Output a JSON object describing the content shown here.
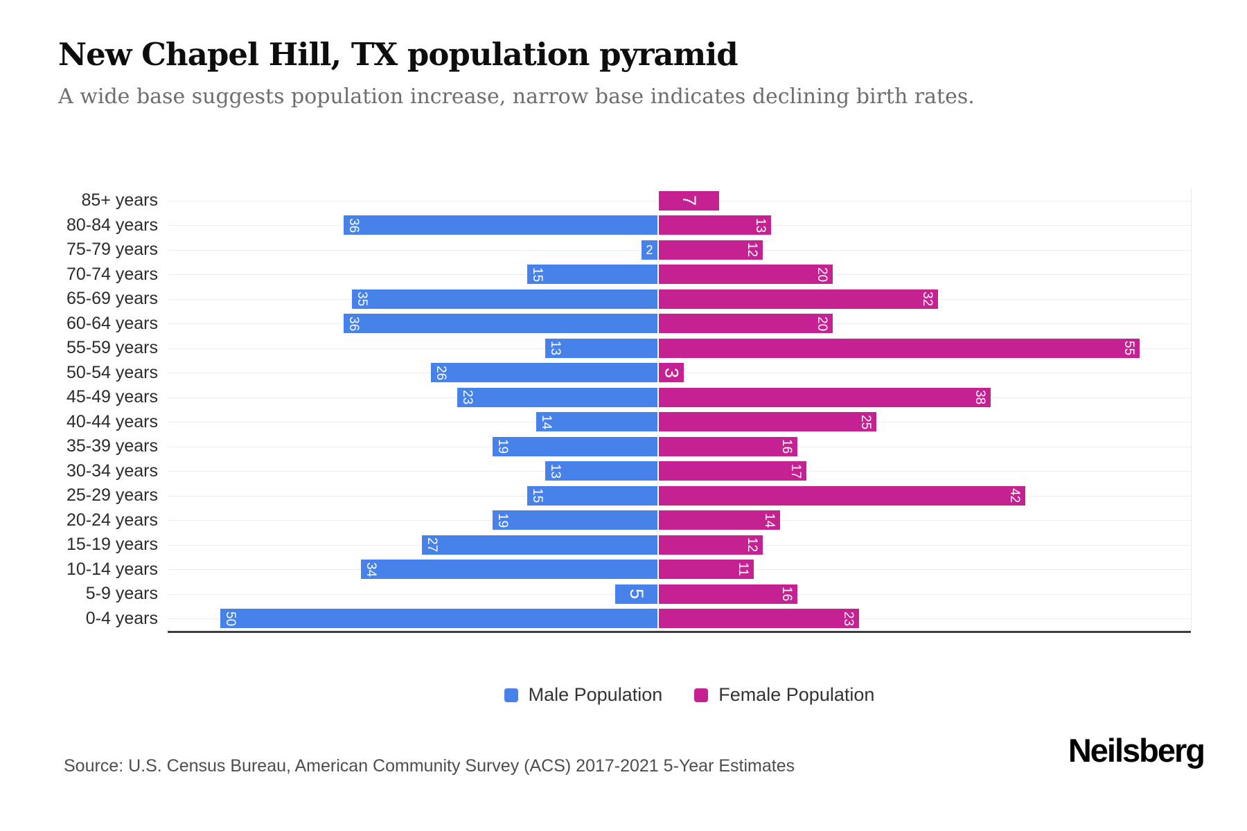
{
  "header": {
    "title": "New Chapel Hill, TX population pyramid",
    "subtitle": "A wide base suggests population increase, narrow base indicates declining birth rates."
  },
  "chart_data": {
    "type": "bar",
    "variant": "population-pyramid",
    "title": "New Chapel Hill, TX population pyramid",
    "categories": [
      "85+ years",
      "80-84 years",
      "75-79 years",
      "70-74 years",
      "65-69 years",
      "60-64 years",
      "55-59 years",
      "50-54 years",
      "45-49 years",
      "40-44 years",
      "35-39 years",
      "30-34 years",
      "25-29 years",
      "20-24 years",
      "15-19 years",
      "10-14 years",
      "5-9 years",
      "0-4 years"
    ],
    "series": [
      {
        "name": "Male Population",
        "color": "#4782EB",
        "values": [
          0,
          36,
          2,
          15,
          35,
          36,
          13,
          26,
          23,
          14,
          19,
          13,
          15,
          19,
          27,
          34,
          5,
          50
        ]
      },
      {
        "name": "Female Population",
        "color": "#C52192",
        "values": [
          7,
          13,
          12,
          20,
          32,
          20,
          55,
          3,
          38,
          25,
          16,
          17,
          42,
          14,
          12,
          11,
          16,
          23
        ]
      }
    ],
    "value_labels": "on bars, white, rotated 90deg",
    "axis": {
      "male_half_max": 56,
      "female_half_max": 61,
      "gridlines": "horizontal light line per category",
      "baseline": "dark line at bottom"
    },
    "legend_position": "bottom-center"
  },
  "legend": {
    "items": [
      {
        "label": "Male Population",
        "color": "#4782EB"
      },
      {
        "label": "Female Population",
        "color": "#C52192"
      }
    ]
  },
  "footer": {
    "source": "Source: U.S. Census Bureau, American Community Survey (ACS) 2017-2021 5-Year Estimates",
    "brand": "Neilsberg"
  }
}
